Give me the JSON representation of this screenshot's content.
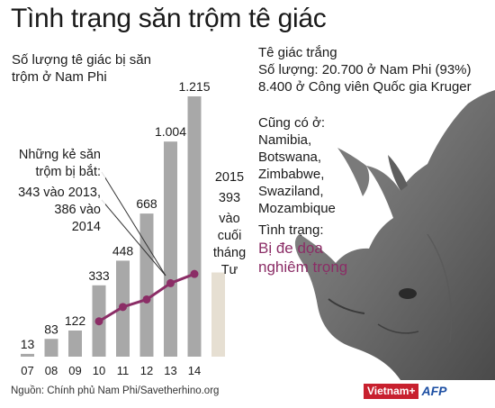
{
  "title": "Tình trạng săn trộm tê giác",
  "chart_title_lines": [
    "Số lượng tê giác bị săn",
    "trộm ở Nam Phi"
  ],
  "arrest_annotation": [
    "Những kẻ săn",
    "trộm bị bắt:",
    "343 vào 2013,",
    "386 vào",
    "2014"
  ],
  "annotation_2015": [
    "2015",
    "393",
    "vào",
    "cuối",
    "tháng",
    "Tư"
  ],
  "info": {
    "species": "Tê giác trắng",
    "count_line": "Số lượng: 20.700 ở Nam Phi (93%)",
    "kruger_line": "8.400 ở Công viên Quốc gia Kruger"
  },
  "also_in": {
    "label": "Cũng có ở:",
    "countries": [
      "Namibia,",
      "Botswana,",
      "Zimbabwe,",
      "Swaziland,",
      "Mozambique"
    ]
  },
  "status": {
    "label": "Tình trạng:",
    "value_lines": [
      "Bị đe dọa",
      "nghiêm trọng"
    ]
  },
  "source": "Nguồn: Chính phủ Nam Phi/Savetherhino.org",
  "logos": {
    "vietnamplus": "Vietnam+",
    "afp": "AFP"
  },
  "colors": {
    "bar": "#a8a8a8",
    "bar_2015": "#e6dfd2",
    "arrest_line": "#8b2d66",
    "status_text": "#8b2d66"
  },
  "chart_data": {
    "type": "bar",
    "categories": [
      "07",
      "08",
      "09",
      "10",
      "11",
      "12",
      "13",
      "14",
      "2015"
    ],
    "series": [
      {
        "values": [
          13,
          83,
          122,
          333,
          448,
          668,
          1004,
          1215,
          393
        ],
        "labels": [
          "13",
          "83",
          "122",
          "333",
          "448",
          "668",
          "1.004",
          "1.215",
          ""
        ]
      },
      {
        "values": [
          null,
          null,
          null,
          165,
          232,
          267,
          343,
          386,
          null
        ]
      }
    ],
    "tick_labels": [
      "07",
      "08",
      "09",
      "10",
      "11",
      "12",
      "13",
      "14",
      ""
    ],
    "ylim": [
      0,
      1215
    ],
    "grid": false
  }
}
